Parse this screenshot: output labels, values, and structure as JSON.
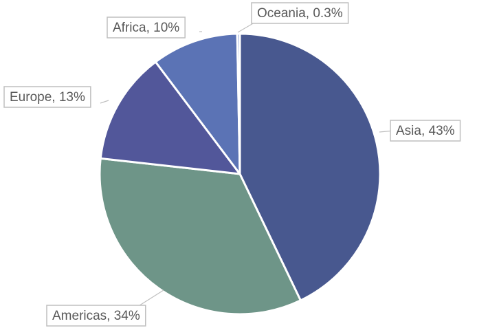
{
  "chart_data": {
    "type": "pie",
    "labels": [
      "Asia, 43%",
      "Americas, 34%",
      "Europe, 13%",
      "Africa, 10%",
      "Oceania, 0.3%"
    ],
    "values": [
      43,
      34,
      13,
      10,
      0.3
    ],
    "colors": [
      "#48588f",
      "#6e9588",
      "#52579a",
      "#5b73b5",
      "#6d88c9"
    ]
  }
}
